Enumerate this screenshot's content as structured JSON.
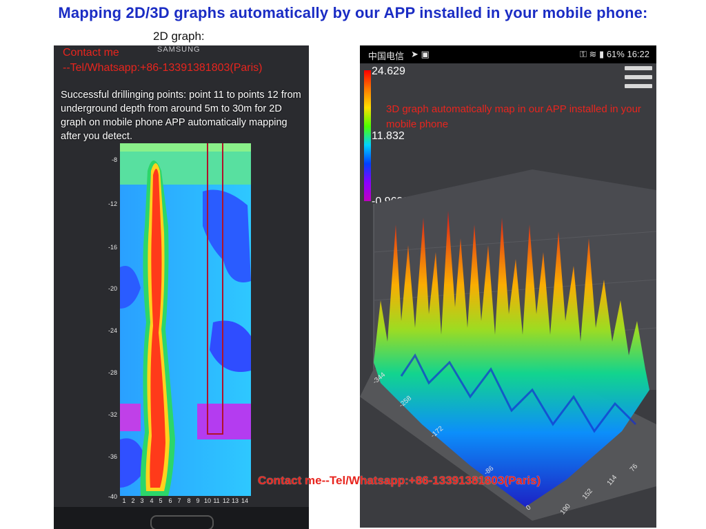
{
  "header": {
    "title": "Mapping 2D/3D graphs automatically by our APP installed in your mobile phone:",
    "sub_2d": "2D graph:"
  },
  "left_phone": {
    "brand": "SAMSUNG",
    "contact_line1": "Contact me",
    "contact_line2": "--Tel/Whatsapp:+86-13391381803(Paris)",
    "description": "Successful drillinging points: point 11 to points 12 from underground depth from around 5m to 30m for 2D graph on mobile phone APP automatically mapping after you detect.",
    "y_ticks": [
      "-8",
      "-12",
      "-16",
      "-20",
      "-24",
      "-28",
      "-32",
      "-36",
      "-40"
    ],
    "x_ticks": [
      "1",
      "2",
      "3",
      "4",
      "5",
      "6",
      "7",
      "8",
      "9",
      "10",
      "11",
      "12",
      "13",
      "14"
    ]
  },
  "right_phone": {
    "status": {
      "carrier": "中国电信",
      "right": "61% 16:22"
    },
    "colorbar": {
      "max": "24.629",
      "mid": "11.832",
      "min": "-0.96386"
    },
    "description": "3D graph automatically map in our APP installed in your mobile phone",
    "y_axis_ticks": [
      "-344",
      "-258",
      "-172",
      "-86",
      "0"
    ],
    "x_axis_ticks": [
      "190",
      "152",
      "114",
      "76"
    ]
  },
  "footer": {
    "contact": "Contact me--Tel/Whatsapp:+86-13391381803(Paris)"
  },
  "colors": {
    "headline": "#1a2cc4",
    "contact_red": "#e8251e"
  }
}
